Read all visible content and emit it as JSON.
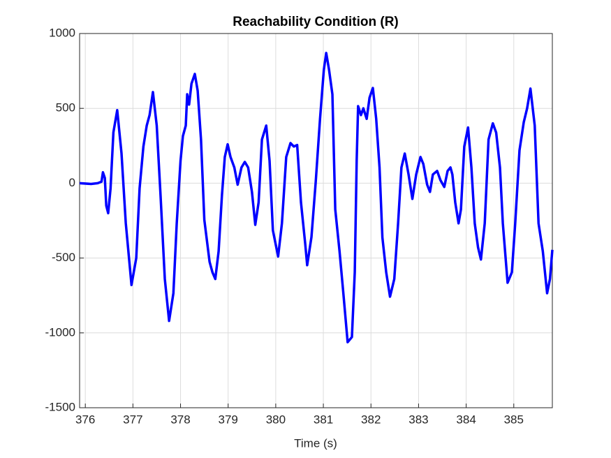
{
  "chart_data": {
    "type": "line",
    "title": "Reachability Condition (R)",
    "x_label": "Time (s)",
    "color": "#0000ff",
    "grid": true,
    "xlim": [
      375.88,
      385.81
    ],
    "ylim": [
      -1500,
      1000
    ],
    "xticks": [
      376,
      377,
      378,
      379,
      380,
      381,
      382,
      383,
      384,
      385
    ],
    "yticks": [
      -1500,
      -1000,
      -500,
      0,
      500,
      1000
    ],
    "x": [
      375.88,
      376.12,
      376.26,
      376.34,
      376.37,
      376.41,
      376.44,
      376.48,
      376.53,
      376.59,
      376.67,
      376.76,
      376.85,
      376.97,
      377.07,
      377.14,
      377.22,
      377.29,
      377.35,
      377.42,
      377.5,
      377.58,
      377.67,
      377.76,
      377.85,
      377.92,
      378.0,
      378.05,
      378.11,
      378.14,
      378.18,
      378.23,
      378.3,
      378.36,
      378.43,
      378.5,
      378.61,
      378.67,
      378.73,
      378.8,
      378.87,
      378.93,
      378.99,
      379.05,
      379.13,
      379.2,
      379.28,
      379.35,
      379.42,
      379.5,
      379.57,
      379.64,
      379.71,
      379.8,
      379.87,
      379.94,
      380.05,
      380.13,
      380.22,
      380.31,
      380.38,
      380.45,
      380.53,
      380.62,
      380.66,
      380.75,
      380.84,
      380.93,
      381.01,
      381.06,
      381.12,
      381.19,
      381.25,
      381.34,
      381.42,
      381.51,
      381.6,
      381.66,
      381.7,
      381.73,
      381.79,
      381.84,
      381.91,
      381.97,
      382.04,
      382.11,
      382.18,
      382.24,
      382.32,
      382.4,
      382.49,
      382.57,
      382.64,
      382.71,
      382.79,
      382.87,
      382.95,
      383.04,
      383.1,
      383.18,
      383.24,
      383.3,
      383.39,
      383.46,
      383.54,
      383.61,
      383.67,
      383.71,
      383.77,
      383.84,
      383.89,
      383.96,
      384.04,
      384.11,
      384.18,
      384.25,
      384.31,
      384.39,
      384.47,
      384.56,
      384.63,
      384.71,
      384.77,
      384.87,
      384.96,
      385.03,
      385.12,
      385.21,
      385.28,
      385.35,
      385.44,
      385.52,
      385.61,
      385.7,
      385.76,
      385.81
    ],
    "values": [
      0,
      -5,
      0,
      10,
      73,
      35,
      -150,
      -200,
      -35,
      340,
      488,
      200,
      -267,
      -680,
      -500,
      -35,
      245,
      385,
      455,
      609,
      385,
      -80,
      -640,
      -920,
      -735,
      -270,
      150,
      315,
      385,
      594,
      525,
      665,
      730,
      618,
      292,
      -245,
      -525,
      -595,
      -640,
      -455,
      -80,
      175,
      260,
      175,
      105,
      -10,
      105,
      142,
      105,
      -58,
      -278,
      -128,
      292,
      385,
      150,
      -315,
      -490,
      -268,
      175,
      268,
      245,
      255,
      -128,
      -408,
      -548,
      -360,
      10,
      430,
      757,
      870,
      757,
      594,
      -175,
      -455,
      -735,
      -1062,
      -1028,
      -595,
      150,
      515,
      455,
      500,
      430,
      571,
      636,
      430,
      105,
      -362,
      -595,
      -758,
      -640,
      -268,
      105,
      198,
      58,
      -105,
      58,
      175,
      128,
      -10,
      -58,
      58,
      82,
      20,
      -25,
      82,
      105,
      58,
      -128,
      -268,
      -175,
      245,
      372,
      105,
      -268,
      -430,
      -510,
      -268,
      292,
      400,
      338,
      105,
      -268,
      -665,
      -595,
      -268,
      220,
      408,
      500,
      632,
      385,
      -268,
      -455,
      -735,
      -640,
      -445
    ]
  }
}
